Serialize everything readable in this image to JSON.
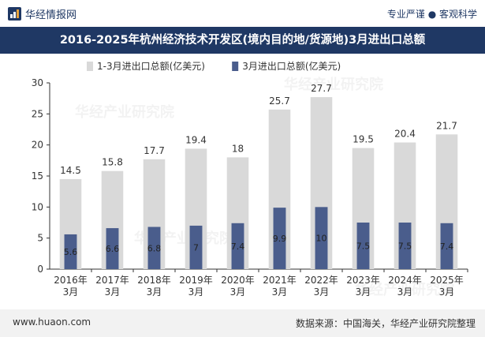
{
  "header": {
    "brand": "华经情报网",
    "tagline": "专业严谨 ● 客观科学"
  },
  "title": "2016-2025年杭州经济技术开发区(境内目的地/货源地)3月进出口总额",
  "footer": {
    "url": "www.huaon.com",
    "source": "数据来源：中国海关，华经产业研究院整理"
  },
  "watermark": {
    "text": "华经产业研究院",
    "url": "www.huaon.com"
  },
  "colors": {
    "header_bg": "#1f3864",
    "series_total": "#d9d9d9",
    "series_march": "#4a5d8c"
  },
  "chart_data": {
    "type": "bar",
    "categories": [
      "2016年\n3月",
      "2017年\n3月",
      "2018年\n3月",
      "2019年\n3月",
      "2020年\n3月",
      "2021年\n3月",
      "2022年\n3月",
      "2023年\n3月",
      "2024年\n3月",
      "2025年\n3月"
    ],
    "series": [
      {
        "name": "1-3月进出口总额(亿美元)",
        "values": [
          14.5,
          15.8,
          17.7,
          19.4,
          18,
          25.7,
          27.7,
          19.5,
          20.4,
          21.7
        ],
        "color": "#d9d9d9"
      },
      {
        "name": "3月进出口总额(亿美元)",
        "values": [
          5.6,
          6.6,
          6.8,
          7,
          7.4,
          9.9,
          10,
          7.5,
          7.5,
          7.4
        ],
        "color": "#4a5d8c"
      }
    ],
    "ylim": [
      0,
      30
    ],
    "yticks": [
      0,
      5,
      10,
      15,
      20,
      25,
      30
    ],
    "legend_position": "top",
    "grid": false,
    "overlapping_bars": true
  }
}
